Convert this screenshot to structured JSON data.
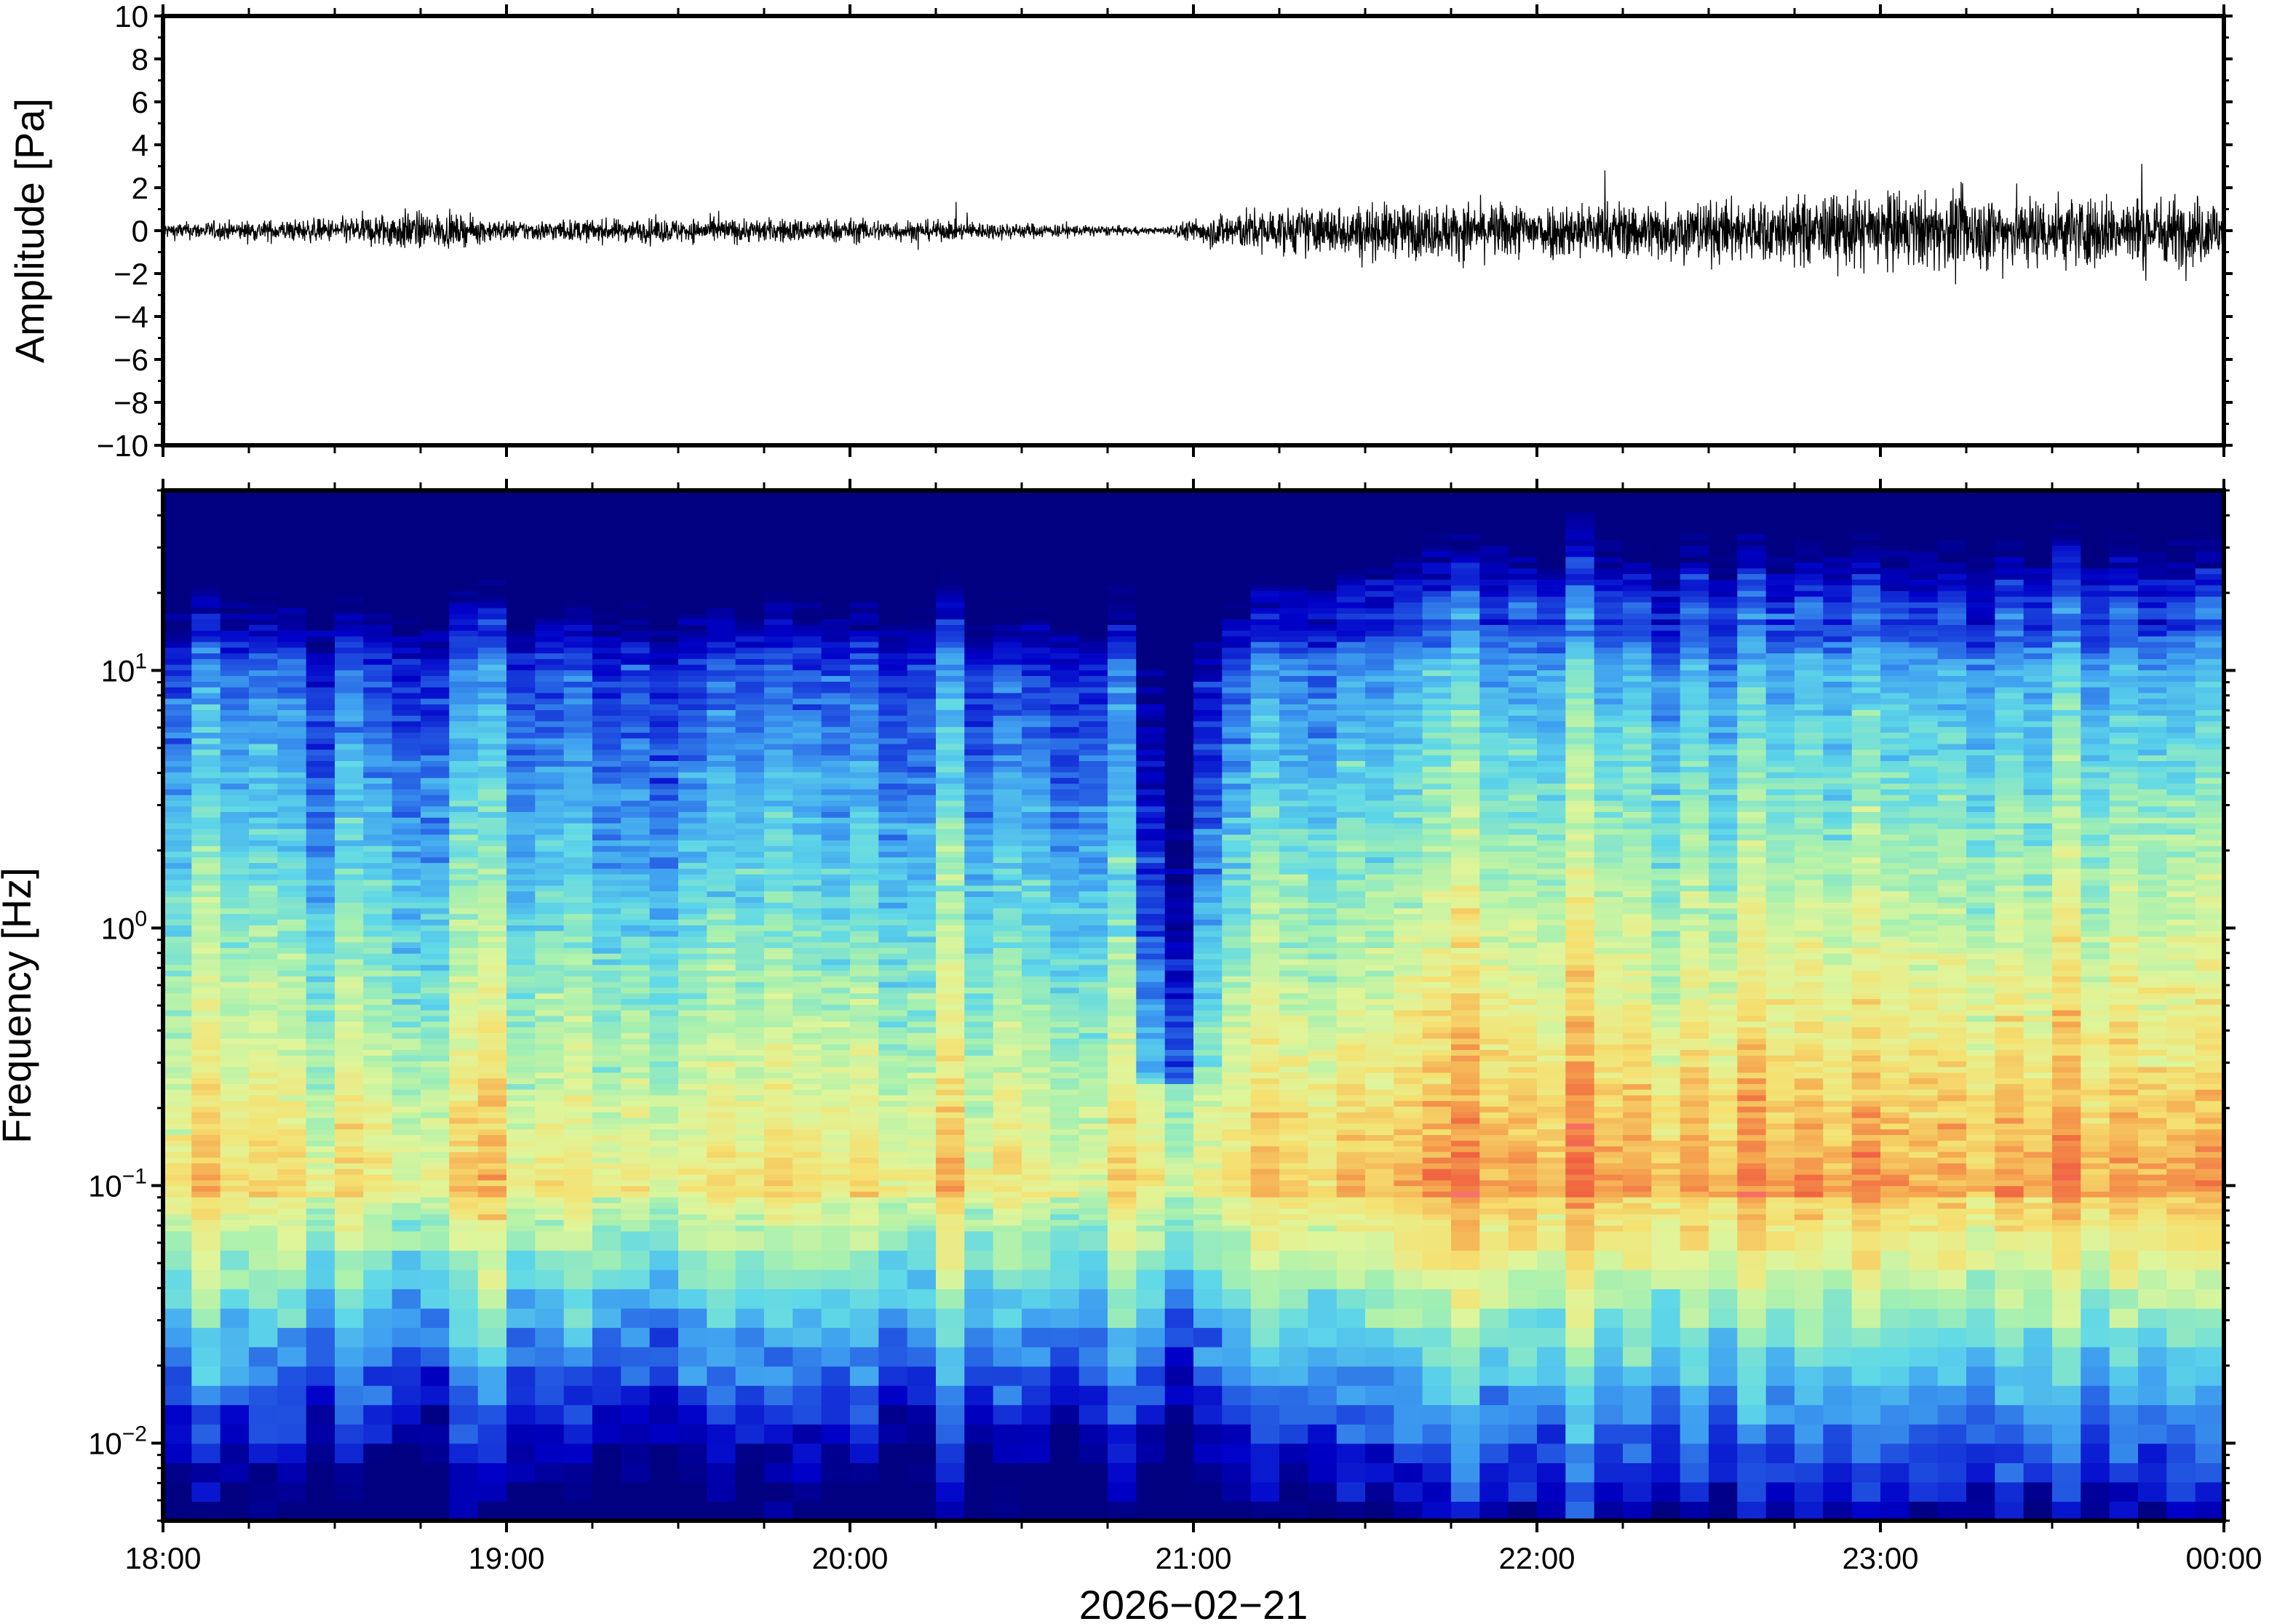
{
  "chart_data": [
    {
      "type": "line",
      "panel": "waveform",
      "ylabel": "Amplitude [Pa]",
      "xlabel": "",
      "ylim": [
        -10,
        10
      ],
      "xlim": [
        "2026-02-21 18:00",
        "2026-02-22 00:00"
      ],
      "y_ticks": [
        "10",
        "8",
        "6",
        "4",
        "2",
        "0",
        "−2",
        "−4",
        "−6",
        "−8",
        "−10"
      ],
      "grid": false,
      "series": [
        {
          "x_hours": [
            18.0,
            18.5,
            18.7,
            19.0,
            19.5,
            20.0,
            20.5,
            20.9,
            21.1,
            21.5,
            22.0,
            22.5,
            23.0,
            23.5,
            24.0
          ],
          "envelope_pa": [
            0.4,
            0.6,
            1.0,
            0.5,
            0.6,
            0.6,
            0.4,
            0.15,
            1.0,
            1.3,
            1.4,
            1.5,
            1.9,
            1.8,
            1.7
          ]
        }
      ]
    },
    {
      "type": "heatmap",
      "panel": "spectrogram",
      "ylabel": "Frequency [Hz]",
      "xlabel": "2026−02−21",
      "yscale": "log",
      "ylim_hz": [
        0.005,
        50
      ],
      "y_ticks": [
        {
          "base": "10",
          "exp": "1",
          "value": 10
        },
        {
          "base": "10",
          "exp": "0",
          "value": 1
        },
        {
          "base": "10",
          "exp": "−1",
          "value": 0.1
        },
        {
          "base": "10",
          "exp": "−2",
          "value": 0.01
        }
      ],
      "x_ticks": [
        "18:00",
        "19:00",
        "20:00",
        "21:00",
        "22:00",
        "23:00",
        "00:00"
      ],
      "colormap": [
        "#000080",
        "#0000c8",
        "#1f4fe0",
        "#3fa0f0",
        "#5fd8e8",
        "#a6f0b0",
        "#e0f59a",
        "#f5e070",
        "#f5a850",
        "#f06040",
        "#ff7f90"
      ],
      "notes_visible": "low-power notch near 21:00; higher power after 21:10"
    }
  ]
}
